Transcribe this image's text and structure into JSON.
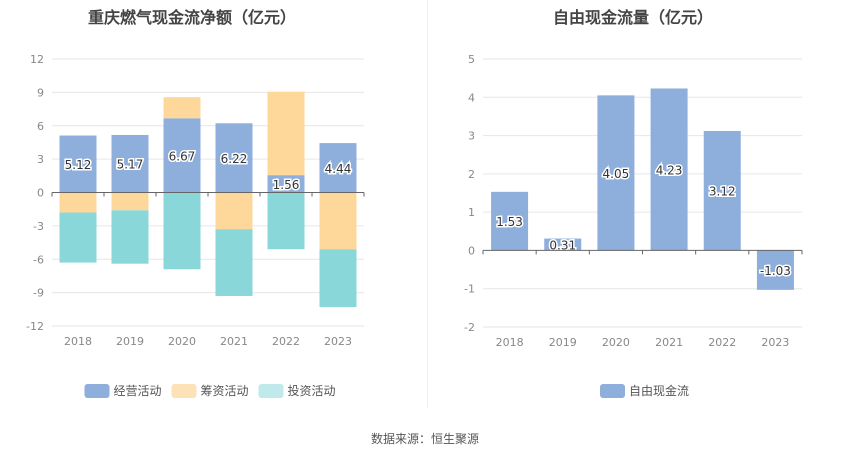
{
  "source_text": "数据来源：恒生聚源",
  "chart_data": [
    {
      "type": "bar",
      "stacked": true,
      "title": "重庆燃气现金流净额（亿元）",
      "categories": [
        "2018",
        "2019",
        "2020",
        "2021",
        "2022",
        "2023"
      ],
      "ylim": [
        -12,
        12
      ],
      "yticks": [
        12,
        9,
        6,
        3,
        0,
        -3,
        -6,
        -9,
        -12
      ],
      "grid": true,
      "legend_position": "bottom",
      "series": [
        {
          "name": "经营活动",
          "color": "#8eaedc",
          "values": [
            5.12,
            5.17,
            6.67,
            6.22,
            1.56,
            4.44
          ],
          "show_labels": true
        },
        {
          "name": "筹资活动",
          "color": "#fdd89a",
          "values": [
            -1.8,
            -1.6,
            1.9,
            -3.3,
            7.5,
            -5.1
          ],
          "show_labels": false
        },
        {
          "name": "投资活动",
          "color": "#8ad7d9",
          "values": [
            -4.5,
            -4.8,
            -6.9,
            -6.0,
            -5.1,
            -5.2
          ],
          "show_labels": false
        }
      ],
      "legend_colors": [
        "#8eaedc",
        "#fde2b8",
        "#bfe9ea"
      ]
    },
    {
      "type": "bar",
      "title": "自由现金流量（亿元）",
      "categories": [
        "2018",
        "2019",
        "2020",
        "2021",
        "2022",
        "2023"
      ],
      "ylim": [
        -2,
        5
      ],
      "yticks": [
        5,
        4,
        3,
        2,
        1,
        0,
        -1,
        -2
      ],
      "grid": true,
      "legend_position": "bottom",
      "series": [
        {
          "name": "自由现金流",
          "color": "#8eaedc",
          "values": [
            1.53,
            0.31,
            4.05,
            4.23,
            3.12,
            -1.03
          ],
          "show_labels": true
        }
      ]
    }
  ]
}
